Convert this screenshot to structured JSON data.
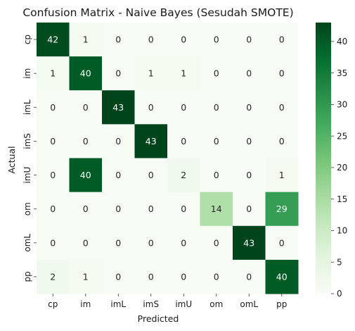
{
  "chart_data": {
    "type": "heatmap",
    "title": "Confusion Matrix - Naive Bayes (Sesudah SMOTE)",
    "xlabel": "Predicted",
    "ylabel": "Actual",
    "x_categories": [
      "cp",
      "im",
      "imL",
      "imS",
      "imU",
      "om",
      "omL",
      "pp"
    ],
    "y_categories": [
      "cp",
      "im",
      "imL",
      "imS",
      "imU",
      "om",
      "omL",
      "pp"
    ],
    "values": [
      [
        42,
        1,
        0,
        0,
        0,
        0,
        0,
        0
      ],
      [
        1,
        40,
        0,
        1,
        1,
        0,
        0,
        0
      ],
      [
        0,
        0,
        43,
        0,
        0,
        0,
        0,
        0
      ],
      [
        0,
        0,
        0,
        43,
        0,
        0,
        0,
        0
      ],
      [
        0,
        40,
        0,
        0,
        2,
        0,
        0,
        1
      ],
      [
        0,
        0,
        0,
        0,
        0,
        14,
        0,
        29
      ],
      [
        0,
        0,
        0,
        0,
        0,
        0,
        43,
        0
      ],
      [
        2,
        1,
        0,
        0,
        0,
        0,
        0,
        40
      ]
    ],
    "colormap": "Greens",
    "colorbar": {
      "range": [
        0,
        43
      ],
      "ticks": [
        0,
        5,
        10,
        15,
        20,
        25,
        30,
        35,
        40
      ]
    },
    "colors": {
      "low": "#f7fcf5",
      "high": "#00441b",
      "text_dark": "#262626",
      "text_light": "#ffffff"
    }
  }
}
